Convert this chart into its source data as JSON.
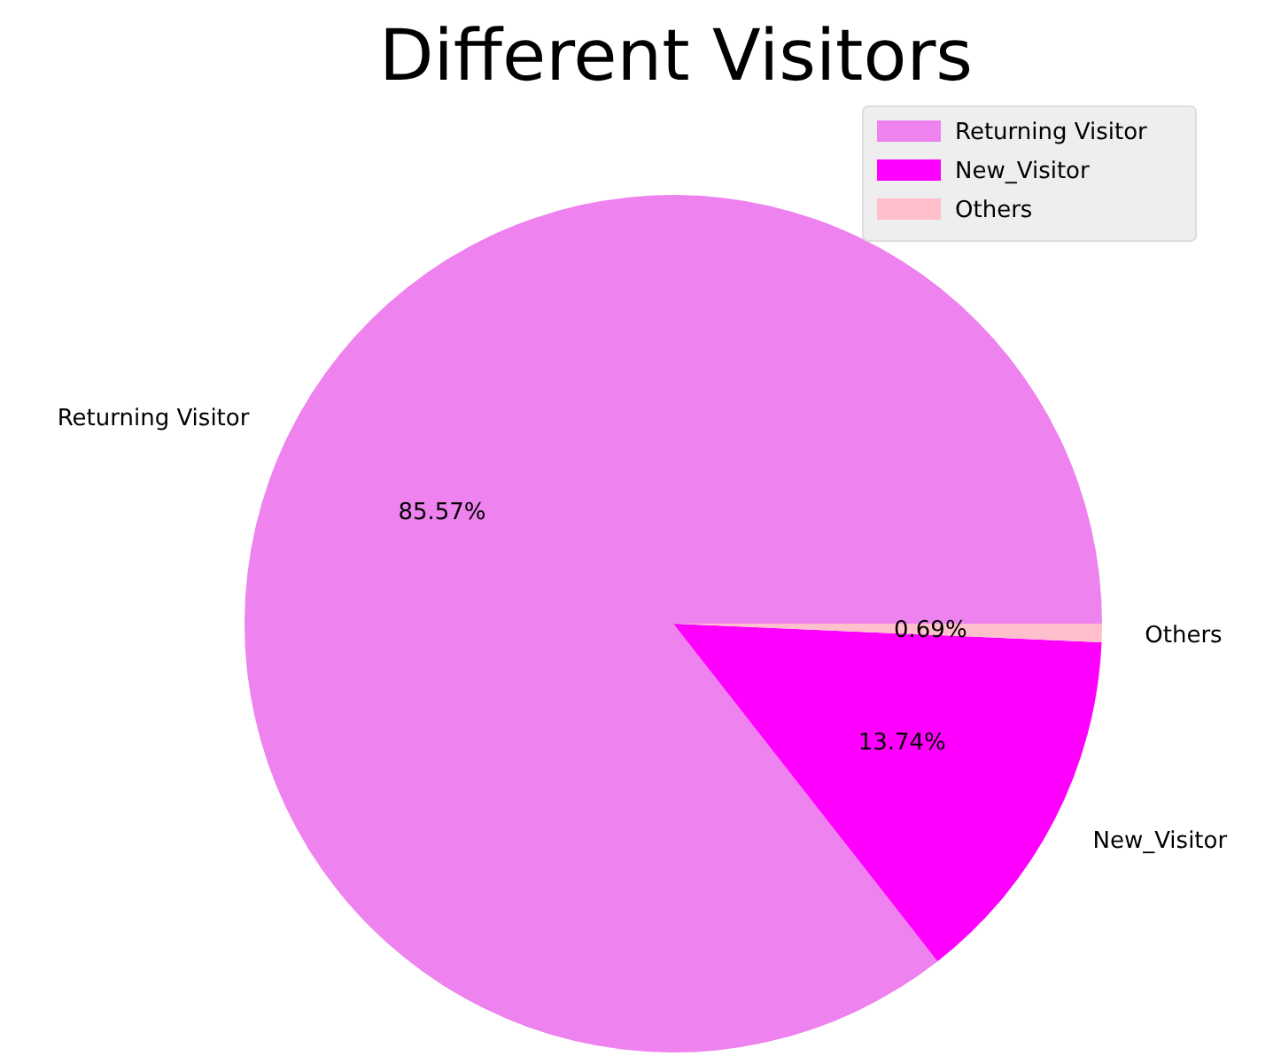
{
  "chart_data": {
    "type": "pie",
    "title": "Different Visitors",
    "categories": [
      "Returning Visitor",
      "New_Visitor",
      "Others"
    ],
    "values": [
      85.57,
      13.74,
      0.69
    ],
    "value_labels": [
      "85.57%",
      "13.74%",
      "0.69%"
    ],
    "colors": [
      "#ee82ee",
      "#ff00ff",
      "#ffc0cb"
    ],
    "legend": "top right"
  }
}
